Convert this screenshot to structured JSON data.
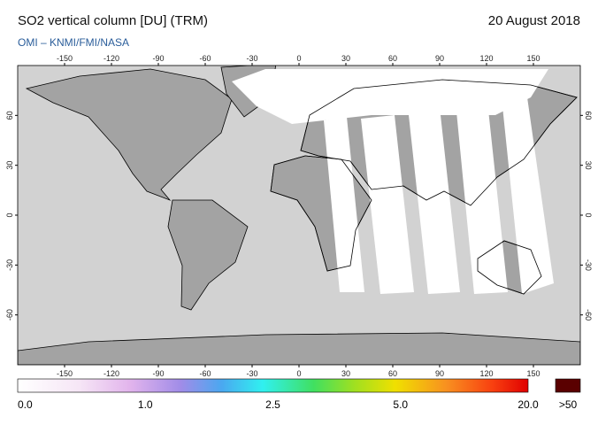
{
  "header": {
    "title": "SO2 vertical column [DU] (TRM)",
    "date": "20 August 2018",
    "source": "OMI – KNMI/FMI/NASA"
  },
  "map": {
    "lon_ticks": [
      -150,
      -120,
      -90,
      -60,
      -30,
      0,
      30,
      60,
      90,
      120,
      150
    ],
    "lat_ticks": [
      60,
      30,
      0,
      -30,
      -60
    ]
  },
  "colorbar": {
    "labels": [
      "0.0",
      "1.0",
      "2.5",
      "5.0",
      "20.0"
    ],
    "overflow_label": ">50"
  }
}
